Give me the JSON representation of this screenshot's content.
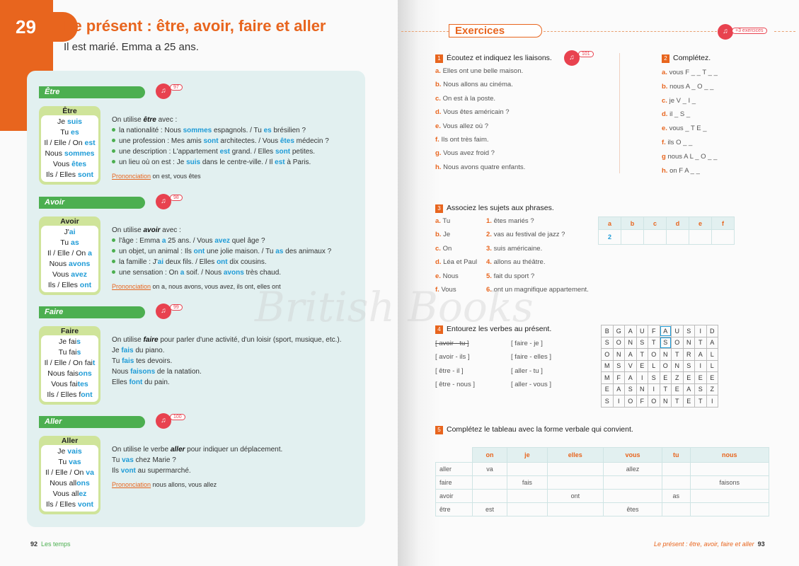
{
  "left": {
    "chapter": "29",
    "title": "Le présent : être, avoir, faire et aller",
    "subtitle": "Il est marié. Emma a 25 ans.",
    "sections": [
      {
        "title": "Être",
        "audio": "97",
        "box_title": "Être",
        "conj": [
          [
            "Je ",
            "suis"
          ],
          [
            "Tu ",
            "es"
          ],
          [
            "Il / Elle / On ",
            "est"
          ],
          [
            "Nous ",
            "sommes"
          ],
          [
            "Vous ",
            "êtes"
          ],
          [
            "Ils / Elles ",
            "sont"
          ]
        ],
        "intro": [
          "On utilise ",
          "être",
          " avec :"
        ],
        "bullets": true,
        "lines": [
          [
            "la nationalité : Nous ",
            "sommes",
            " espagnols. / Tu ",
            "es",
            " brésilien ?"
          ],
          [
            "une profession : Mes amis ",
            "sont",
            " architectes. / Vous ",
            "êtes",
            " médecin ?"
          ],
          [
            "une description : L'appartement ",
            "est",
            " grand. / Elles ",
            "sont",
            " petites."
          ],
          [
            "un lieu où on est : Je ",
            "suis",
            " dans le centre-ville. / Il ",
            "est",
            " à Paris."
          ]
        ],
        "pron_label": "Prononciation",
        "pron": "on est, vous êtes"
      },
      {
        "title": "Avoir",
        "audio": "98",
        "box_title": "Avoir",
        "conj": [
          [
            "J'",
            "ai"
          ],
          [
            "Tu ",
            "as"
          ],
          [
            "Il / Elle / On ",
            "a"
          ],
          [
            "Nous ",
            "avons"
          ],
          [
            "Vous ",
            "avez"
          ],
          [
            "Ils / Elles ",
            "ont"
          ]
        ],
        "intro": [
          "On utilise ",
          "avoir",
          " avec :"
        ],
        "bullets": true,
        "lines": [
          [
            "l'âge : Emma ",
            "a",
            " 25 ans. / Vous ",
            "avez",
            " quel âge ?"
          ],
          [
            "un objet, un animal : Ils ",
            "ont",
            " une jolie maison. / Tu ",
            "as",
            " des animaux ?"
          ],
          [
            "la famille : J'",
            "ai",
            " deux fils. / Elles ",
            "ont",
            " dix cousins."
          ],
          [
            "une sensation : On ",
            "a",
            " soif. / Nous ",
            "avons",
            " très chaud."
          ]
        ],
        "pron_label": "Prononciation",
        "pron": "on a, nous avons, vous avez, ils ont, elles ont"
      },
      {
        "title": "Faire",
        "audio": "99",
        "box_title": "Faire",
        "conj": [
          [
            "Je fai",
            "s"
          ],
          [
            "Tu fai",
            "s"
          ],
          [
            "Il / Elle / On fai",
            "t"
          ],
          [
            "Nous fais",
            "ons"
          ],
          [
            "Vous fai",
            "tes"
          ],
          [
            "Ils / Elles f",
            "ont"
          ]
        ],
        "intro": [
          "On utilise ",
          "faire",
          " pour parler d'une activité, d'un loisir (sport, musique, etc.)."
        ],
        "bullets": false,
        "lines": [
          [
            "Je ",
            "fais",
            " du piano."
          ],
          [
            "Tu ",
            "fais",
            " tes devoirs."
          ],
          [
            "Nous ",
            "faisons",
            " de la natation."
          ],
          [
            "Elles ",
            "font",
            " du pain."
          ]
        ]
      },
      {
        "title": "Aller",
        "audio": "100",
        "box_title": "Aller",
        "conj": [
          [
            "Je ",
            "vais"
          ],
          [
            "Tu ",
            "vas"
          ],
          [
            "Il / Elle / On ",
            "va"
          ],
          [
            "Nous all",
            "ons"
          ],
          [
            "Vous all",
            "ez"
          ],
          [
            "Ils / Elles ",
            "vont"
          ]
        ],
        "intro": [
          "On utilise le verbe ",
          "aller",
          " pour indiquer un déplacement."
        ],
        "bullets": false,
        "lines": [
          [
            "Tu ",
            "vas",
            " chez Marie ?"
          ],
          [
            "Ils ",
            "vont",
            " au supermarché."
          ]
        ],
        "pron_label": "Prononciation",
        "pron": "nous allons, vous allez"
      }
    ],
    "footer": {
      "page": "92",
      "label": "Les temps"
    }
  },
  "right": {
    "heading": "Exercices",
    "extra": "+3 exercices",
    "ex1": {
      "num": "1",
      "q": "Écoutez et indiquez les liaisons.",
      "audio": "101",
      "items": [
        [
          "a.",
          "Elles ont une belle maison."
        ],
        [
          "b.",
          "Nous allons au cinéma."
        ],
        [
          "c.",
          "On est à la poste."
        ],
        [
          "d.",
          "Vous êtes américain ?"
        ],
        [
          "e.",
          "Vous allez où ?"
        ],
        [
          "f.",
          "Ils ont très faim."
        ],
        [
          "g.",
          "Vous avez froid ?"
        ],
        [
          "h.",
          "Nous avons quatre enfants."
        ]
      ]
    },
    "ex2": {
      "num": "2",
      "q": "Complétez.",
      "items": [
        [
          "a.",
          "vous F _ _ T _ _"
        ],
        [
          "b.",
          "nous A _ O _ _"
        ],
        [
          "c.",
          "je V _ I _"
        ],
        [
          "d.",
          "il _ S _"
        ],
        [
          "e.",
          "vous _ T E _"
        ],
        [
          "f.",
          "ils O _ _"
        ],
        [
          "g",
          "nous A L _ O _ _"
        ],
        [
          "h.",
          "on F A _ _"
        ]
      ]
    },
    "ex3": {
      "num": "3",
      "q": "Associez les sujets aux phrases.",
      "subjects": [
        [
          "a.",
          "Tu"
        ],
        [
          "b.",
          "Je"
        ],
        [
          "c.",
          "On"
        ],
        [
          "d.",
          "Léa et Paul"
        ],
        [
          "e.",
          "Nous"
        ],
        [
          "f.",
          "Vous"
        ]
      ],
      "phrases": [
        [
          "1.",
          "êtes mariés ?"
        ],
        [
          "2.",
          "vas au festival de jazz ?"
        ],
        [
          "3.",
          "suis américaine."
        ],
        [
          "4.",
          "allons au théâtre."
        ],
        [
          "5.",
          "fait du sport ?"
        ],
        [
          "6.",
          "ont un magnifique appartement."
        ]
      ],
      "table_head": [
        "a",
        "b",
        "c",
        "d",
        "e",
        "f"
      ],
      "table_row": [
        "2",
        "",
        "",
        "",
        "",
        ""
      ]
    },
    "ex4": {
      "num": "4",
      "q": "Entourez les verbes au présent.",
      "col1": [
        "[ avoir - tu ]",
        "[ avoir - ils ]",
        "[ être - il ]",
        "[ être - nous ]"
      ],
      "col2": [
        "[ faire - je ]",
        "[ faire - elles ]",
        "[ aller - tu ]",
        "[ aller - vous ]"
      ],
      "grid": [
        "BGAUFAUSID",
        "SONSTSONTA",
        "ONATONTRAL",
        "MSVELONSIL",
        "MFAISEZEEE",
        "EASNITEASZ",
        "SIOFONTETI"
      ]
    },
    "ex5": {
      "num": "5",
      "q": "Complétez le tableau avec la forme verbale qui convient.",
      "head": [
        "",
        "on",
        "je",
        "elles",
        "vous",
        "tu",
        "nous"
      ],
      "rows": [
        [
          "aller",
          "va",
          "",
          "",
          "allez",
          "",
          ""
        ],
        [
          "faire",
          "",
          "fais",
          "",
          "",
          "",
          "faisons"
        ],
        [
          "avoir",
          "",
          "",
          "ont",
          "",
          "as",
          ""
        ],
        [
          "être",
          "est",
          "",
          "",
          "êtes",
          "",
          ""
        ]
      ]
    },
    "footer": {
      "label": "Le présent : être, avoir, faire et aller",
      "page": "93"
    },
    "watermark": "British Books"
  },
  "colors": {
    "orange": "#e8651e",
    "green": "#4caf50",
    "blue": "#1e9bd7",
    "panel": "#e2f0f0"
  }
}
